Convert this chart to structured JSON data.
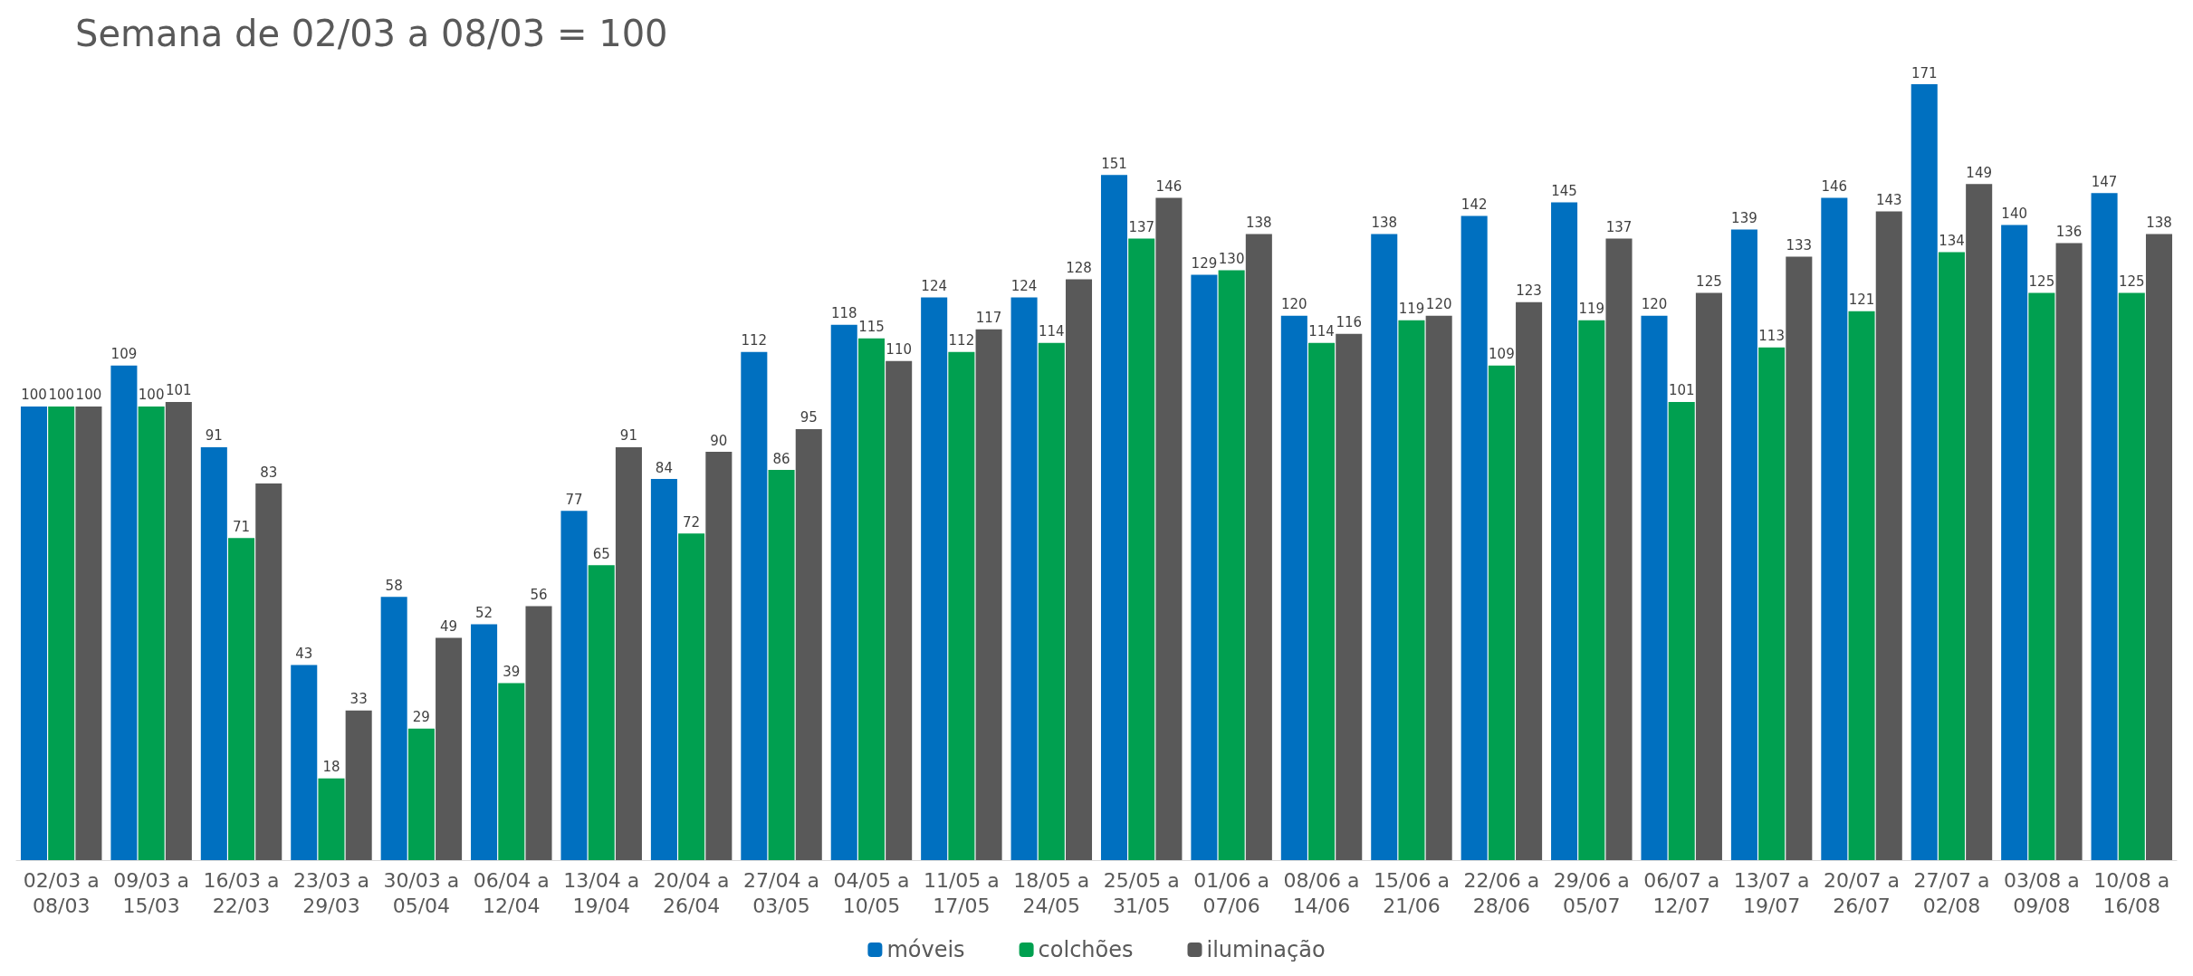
{
  "chart_data": {
    "type": "bar",
    "title": "Semana de 02/03 a 08/03 = 100",
    "categories": [
      "02/03 a 08/03",
      "09/03 a 15/03",
      "16/03 a 22/03",
      "23/03 a 29/03",
      "30/03 a 05/04",
      "06/04 a 12/04",
      "13/04 a 19/04",
      "20/04 a 26/04",
      "27/04 a 03/05",
      "04/05 a 10/05",
      "11/05 a 17/05",
      "18/05 a 24/05",
      "25/05 a 31/05",
      "01/06 a 07/06",
      "08/06 a 14/06",
      "15/06 a 21/06",
      "22/06 a 28/06",
      "29/06 a 05/07",
      "06/07 a 12/07",
      "13/07 a 19/07",
      "20/07 a 26/07",
      "27/07 a 02/08",
      "03/08 a 09/08",
      "10/08 a 16/08"
    ],
    "series": [
      {
        "name": "móveis",
        "color": "#0070c0",
        "values": [
          100,
          109,
          91,
          43,
          58,
          52,
          77,
          84,
          112,
          118,
          124,
          124,
          151,
          129,
          120,
          138,
          142,
          145,
          120,
          139,
          146,
          171,
          140,
          147
        ]
      },
      {
        "name": "colchões",
        "color": "#00a050",
        "values": [
          100,
          100,
          71,
          18,
          29,
          39,
          65,
          72,
          86,
          115,
          112,
          114,
          137,
          130,
          114,
          119,
          109,
          119,
          101,
          113,
          121,
          134,
          125,
          125
        ]
      },
      {
        "name": "iluminação",
        "color": "#595959",
        "values": [
          100,
          101,
          83,
          33,
          49,
          56,
          91,
          90,
          95,
          110,
          117,
          128,
          146,
          138,
          116,
          120,
          123,
          137,
          125,
          133,
          143,
          149,
          136,
          138
        ]
      }
    ],
    "data_labels": true,
    "grid": false,
    "legend": "bottom",
    "tick_labels": "x"
  }
}
